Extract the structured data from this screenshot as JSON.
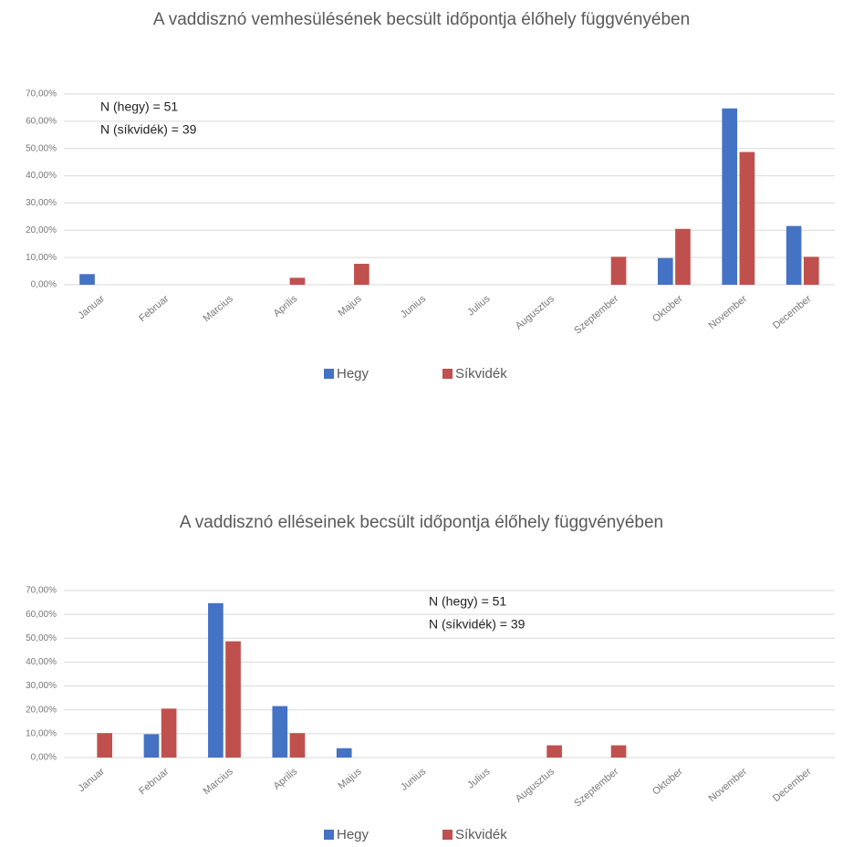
{
  "chart_data": [
    {
      "type": "bar",
      "title": "A vaddisznó vemhesülésének becsült időpontja élőhely függvényében",
      "annotations": [
        "N (hegy) = 51",
        "N (síkvidék) = 39"
      ],
      "categories": [
        "Januar",
        "Februar",
        "Marcius",
        "Aprilis",
        "Majus",
        "Junius",
        "Julius",
        "Augusztus",
        "Szeptember",
        "Oktober",
        "November",
        "December"
      ],
      "series": [
        {
          "name": "Hegy",
          "color": "#4472c4",
          "values": [
            3.92,
            0,
            0,
            0,
            0,
            0,
            0,
            0,
            0,
            9.8,
            64.71,
            21.57
          ]
        },
        {
          "name": "Síkvidék",
          "color": "#c0504d",
          "values": [
            0,
            0,
            0,
            2.56,
            7.69,
            0,
            0,
            0,
            10.26,
            20.51,
            48.72,
            10.26
          ]
        }
      ],
      "ylim": [
        0,
        70
      ],
      "yticks": [
        {
          "value": 0,
          "label": "0,00%"
        },
        {
          "value": 10,
          "label": "10,00%"
        },
        {
          "value": 20,
          "label": "20,00%"
        },
        {
          "value": 30,
          "label": "30,00%"
        },
        {
          "value": 40,
          "label": "40,00%"
        },
        {
          "value": 50,
          "label": "50,00%"
        },
        {
          "value": 60,
          "label": "60,00%"
        },
        {
          "value": 70,
          "label": "70,00%"
        }
      ],
      "grid": true,
      "legend": "bottom"
    },
    {
      "type": "bar",
      "title": "A vaddisznó elléseinek becsült időpontja élőhely függvényében",
      "annotations": [
        "N (hegy) = 51",
        "N (síkvidék) = 39"
      ],
      "categories": [
        "Januar",
        "Februar",
        "Marcius",
        "Aprilis",
        "Majus",
        "Junius",
        "Julius",
        "Augusztus",
        "Szeptember",
        "Oktober",
        "November",
        "December"
      ],
      "series": [
        {
          "name": "Hegy",
          "color": "#4472c4",
          "values": [
            0,
            9.8,
            64.71,
            21.57,
            3.92,
            0,
            0,
            0,
            0,
            0,
            0,
            0
          ]
        },
        {
          "name": "Síkvidék",
          "color": "#c0504d",
          "values": [
            10.26,
            20.51,
            48.72,
            10.26,
            0,
            0,
            0,
            5.13,
            5.13,
            0,
            0,
            0
          ]
        }
      ],
      "ylim": [
        0,
        70
      ],
      "yticks": [
        {
          "value": 0,
          "label": "0,00%"
        },
        {
          "value": 10,
          "label": "10,00%"
        },
        {
          "value": 20,
          "label": "20,00%"
        },
        {
          "value": 30,
          "label": "30,00%"
        },
        {
          "value": 40,
          "label": "40,00%"
        },
        {
          "value": 50,
          "label": "50,00%"
        },
        {
          "value": 60,
          "label": "60,00%"
        },
        {
          "value": 70,
          "label": "70,00%"
        }
      ],
      "grid": true,
      "legend": "bottom"
    }
  ]
}
